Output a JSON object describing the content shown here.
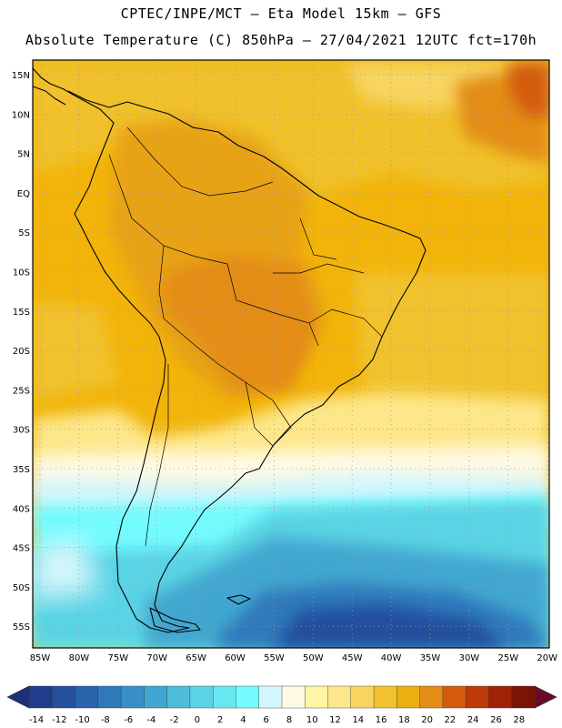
{
  "header": {
    "line1": "CPTEC/INPE/MCT  –   Eta Model 15km  –  GFS",
    "line2": "Absolute Temperature (C) 850hPa – 27/04/2021 12UTC fct=170h"
  },
  "map": {
    "lat_labels": [
      "15N",
      "10N",
      "5N",
      "EQ",
      "5S",
      "10S",
      "15S",
      "20S",
      "25S",
      "30S",
      "35S",
      "40S",
      "45S",
      "50S",
      "55S"
    ],
    "lon_labels": [
      "85W",
      "80W",
      "75W",
      "70W",
      "65W",
      "60W",
      "55W",
      "50W",
      "45W",
      "40W",
      "35W",
      "30W",
      "25W",
      "20W"
    ]
  },
  "colorbar": {
    "labels": [
      "-14",
      "-12",
      "-10",
      "-8",
      "-6",
      "-4",
      "-2",
      "0",
      "2",
      "4",
      "6",
      "8",
      "10",
      "12",
      "14",
      "16",
      "18",
      "20",
      "22",
      "24",
      "26",
      "28"
    ],
    "colors": [
      "#1f3d8c",
      "#24509e",
      "#2a64ad",
      "#2f79bb",
      "#3990c6",
      "#42a7d0",
      "#4dbdd9",
      "#5ad3e4",
      "#67e8f0",
      "#73fbfd",
      "#d4f6fd",
      "#fef9e3",
      "#fff5a5",
      "#fde78a",
      "#f8d460",
      "#f1c22e",
      "#ebaf12",
      "#e38d17",
      "#d45c0c",
      "#bf3a08",
      "#a02106",
      "#7a1506"
    ],
    "under_color": "#1c2f7a",
    "over_color": "#6a0a2a"
  }
}
